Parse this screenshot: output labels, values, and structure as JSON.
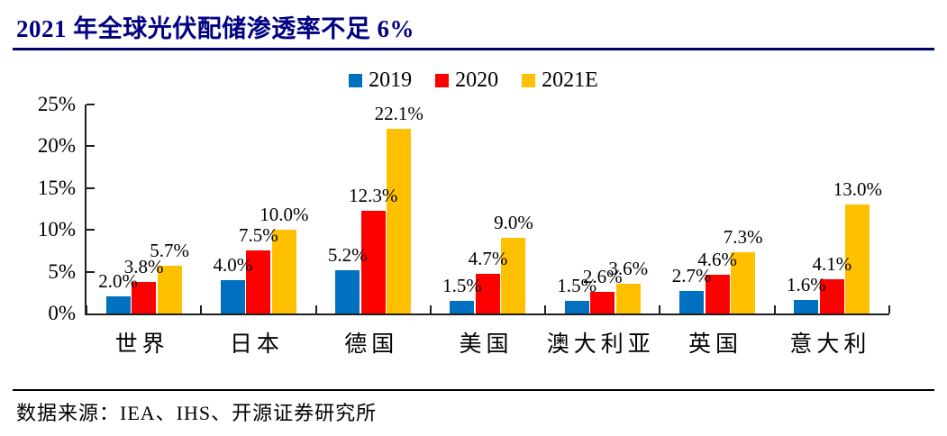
{
  "header": {
    "title": "2021 年全球光伏配储渗透率不足 6%",
    "title_color": "#000080"
  },
  "chart_data": {
    "type": "bar",
    "title": "2021 年全球光伏配储渗透率不足 6%",
    "categories": [
      "世界",
      "日本",
      "德国",
      "美国",
      "澳大利亚",
      "英国",
      "意大利"
    ],
    "series": [
      {
        "name": "2019",
        "color": "#0070C0",
        "values": [
          2.0,
          4.0,
          5.2,
          1.5,
          1.5,
          2.7,
          1.6
        ]
      },
      {
        "name": "2020",
        "color": "#FF0000",
        "values": [
          3.8,
          7.5,
          12.3,
          4.7,
          2.6,
          4.6,
          4.1
        ]
      },
      {
        "name": "2021E",
        "color": "#FFC000",
        "values": [
          5.7,
          10.0,
          22.1,
          9.0,
          3.6,
          7.3,
          13.0
        ]
      }
    ],
    "data_labels": [
      [
        "2.0%",
        "4.0%",
        "5.2%",
        "1.5%",
        "1.5%",
        "2.7%",
        "1.6%"
      ],
      [
        "3.8%",
        "7.5%",
        "12.3%",
        "4.7%",
        "2.6%",
        "4.6%",
        "4.1%"
      ],
      [
        "5.7%",
        "10.0%",
        "22.1%",
        "9.0%",
        "3.6%",
        "7.3%",
        "13.0%"
      ]
    ],
    "xlabel": "",
    "ylabel": "",
    "ylim": [
      0,
      25
    ],
    "ytick_step": 5,
    "ytick_labels": [
      "0%",
      "5%",
      "10%",
      "15%",
      "20%",
      "25%"
    ],
    "legend_position": "top",
    "legend_labels": [
      "2019",
      "2020",
      "2021E"
    ],
    "grid": false,
    "axis_color": "#1f1f1f"
  },
  "footer": {
    "source": "数据来源：IEA、IHS、开源证券研究所"
  }
}
